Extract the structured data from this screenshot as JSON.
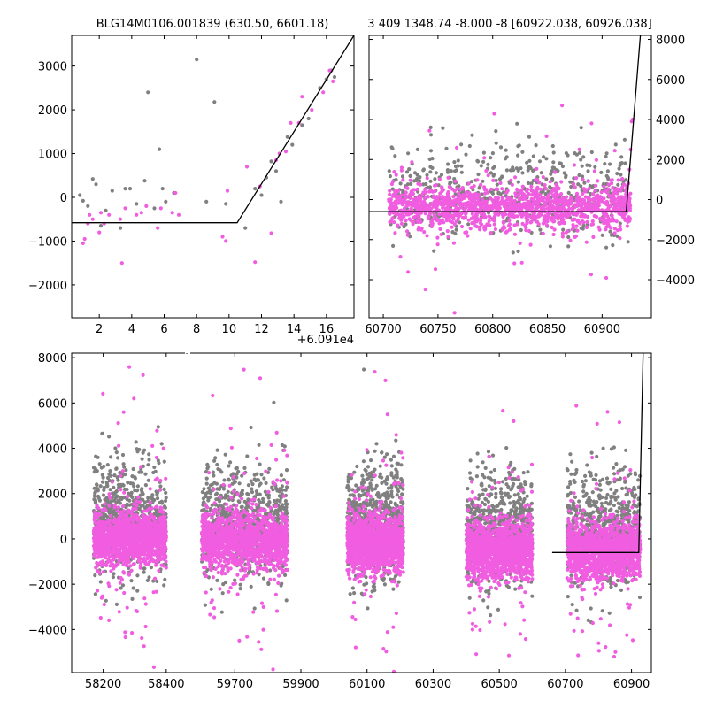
{
  "colors": {
    "gray_points": "#808080",
    "pink_points": "#f15de0",
    "model_line": "#000000",
    "axis": "#000000"
  },
  "chart_data": [
    {
      "name": "top-left-zoom",
      "type": "scatter",
      "title": "BLG14M0106.001839 (630.50, 6601.18)",
      "x_offset_label": "+6.091e4",
      "xlim": [
        0.3,
        17.7
      ],
      "ylim": [
        -2750,
        3700
      ],
      "xticks": [
        2,
        4,
        6,
        8,
        10,
        12,
        14,
        16
      ],
      "xtick_labels": [
        "2",
        "4",
        "6",
        "8",
        "10",
        "12",
        "14",
        "16"
      ],
      "yticks": [
        -2000,
        -1000,
        0,
        1000,
        2000,
        3000
      ],
      "ytick_labels": [
        "−2000",
        "−1000",
        "0",
        "1000",
        "2000",
        "3000"
      ],
      "ytick_side": "left",
      "model_line": [
        [
          0.3,
          -580
        ],
        [
          10.5,
          -580
        ],
        [
          17.7,
          3700
        ]
      ],
      "gray_points": [
        [
          0.8,
          50
        ],
        [
          1.0,
          -80
        ],
        [
          1.3,
          -200
        ],
        [
          1.6,
          420
        ],
        [
          1.8,
          300
        ],
        [
          2.1,
          -650
        ],
        [
          2.4,
          -300
        ],
        [
          2.8,
          150
        ],
        [
          3.3,
          -700
        ],
        [
          3.6,
          200
        ],
        [
          3.9,
          200
        ],
        [
          4.3,
          -150
        ],
        [
          4.8,
          380
        ],
        [
          5.0,
          2400
        ],
        [
          5.4,
          -250
        ],
        [
          5.7,
          1100
        ],
        [
          5.9,
          200
        ],
        [
          6.1,
          -100
        ],
        [
          6.6,
          100
        ],
        [
          8.0,
          3150
        ],
        [
          8.6,
          -100
        ],
        [
          9.1,
          2180
        ],
        [
          9.8,
          -150
        ],
        [
          11.0,
          -700
        ],
        [
          11.6,
          200
        ],
        [
          12.0,
          50
        ],
        [
          12.3,
          450
        ],
        [
          12.6,
          820
        ],
        [
          12.9,
          600
        ],
        [
          13.2,
          -100
        ],
        [
          13.6,
          1380
        ],
        [
          13.9,
          1200
        ],
        [
          14.5,
          1650
        ],
        [
          14.9,
          1800
        ],
        [
          15.6,
          2500
        ],
        [
          16.0,
          2700
        ],
        [
          16.3,
          2900
        ],
        [
          16.5,
          2750
        ]
      ],
      "pink_points": [
        [
          1.0,
          -1050
        ],
        [
          1.1,
          -950
        ],
        [
          1.3,
          -600
        ],
        [
          1.4,
          -400
        ],
        [
          1.6,
          -500
        ],
        [
          2.0,
          -800
        ],
        [
          2.1,
          -350
        ],
        [
          2.3,
          -600
        ],
        [
          2.6,
          -400
        ],
        [
          3.3,
          -500
        ],
        [
          3.4,
          -1500
        ],
        [
          3.6,
          -250
        ],
        [
          4.3,
          -400
        ],
        [
          4.6,
          -350
        ],
        [
          4.9,
          -200
        ],
        [
          5.6,
          -700
        ],
        [
          5.8,
          -250
        ],
        [
          6.5,
          -350
        ],
        [
          6.7,
          100
        ],
        [
          6.9,
          -400
        ],
        [
          9.6,
          -900
        ],
        [
          9.8,
          -1000
        ],
        [
          9.9,
          150
        ],
        [
          11.1,
          700
        ],
        [
          11.6,
          -1480
        ],
        [
          11.9,
          250
        ],
        [
          12.6,
          -820
        ],
        [
          12.9,
          850
        ],
        [
          13.1,
          1000
        ],
        [
          13.5,
          1050
        ],
        [
          13.8,
          1700
        ],
        [
          14.3,
          1700
        ],
        [
          14.5,
          2300
        ],
        [
          15.1,
          2000
        ],
        [
          15.8,
          2400
        ],
        [
          16.2,
          2900
        ],
        [
          16.4,
          2650
        ]
      ]
    },
    {
      "name": "top-right-zoom",
      "type": "scatter",
      "title": "3 409 1348.74 -8.000 -8 [60922.038, 60926.038]",
      "xlim": [
        60687,
        60945
      ],
      "ylim": [
        -5900,
        8200
      ],
      "xticks": [
        60700,
        60750,
        60800,
        60850,
        60900
      ],
      "xtick_labels": [
        "60700",
        "60750",
        "60800",
        "60850",
        "60900"
      ],
      "yticks": [
        -4000,
        -2000,
        0,
        2000,
        4000,
        6000,
        8000
      ],
      "ytick_labels": [
        "−4000",
        "−2000",
        "0",
        "2000",
        "4000",
        "6000",
        "8000"
      ],
      "ytick_side": "right",
      "model_line": [
        [
          60687,
          -600
        ],
        [
          60922,
          -600
        ],
        [
          60935,
          8200
        ]
      ],
      "cloud": {
        "x_range": [
          60705,
          60926
        ],
        "center": -400,
        "spread": 550,
        "n_pink": 1400,
        "n_gray": 550,
        "gray_spread": 1500
      },
      "rise_points": [
        [
          60922,
          200
        ],
        [
          60924,
          800
        ],
        [
          60925,
          1500
        ],
        [
          60926,
          2500
        ],
        [
          60927,
          3900
        ],
        [
          60928,
          4000
        ]
      ]
    },
    {
      "name": "bottom-full-lightcurve",
      "type": "scatter",
      "xlim": [
        58100,
        60960
      ],
      "ylim": [
        -5900,
        8200
      ],
      "xticks": [
        58200,
        58400,
        59700,
        59900,
        60100,
        60300,
        60500,
        60700,
        60900
      ],
      "xtick_labels": [
        "58200",
        "58400",
        "59700",
        "59900",
        "60100",
        "60300",
        "60500",
        "60700",
        "60900"
      ],
      "yticks": [
        -4000,
        -2000,
        0,
        2000,
        4000,
        6000,
        8000
      ],
      "ytick_labels": [
        "−4000",
        "−2000",
        "0",
        "2000",
        "4000",
        "6000",
        "8000"
      ],
      "ytick_side": "left",
      "axis_break": "between 58400 and 59700",
      "seasons": [
        {
          "x_range": [
            58170,
            58400
          ],
          "center": 0,
          "spread": 550
        },
        {
          "x_range": [
            59600,
            59860
          ],
          "center": -100,
          "spread": 600
        },
        {
          "x_range": [
            60040,
            60210
          ],
          "center": -200,
          "spread": 600
        },
        {
          "x_range": [
            60400,
            60600
          ],
          "center": -500,
          "spread": 600
        },
        {
          "x_range": [
            60705,
            60926
          ],
          "center": -550,
          "spread": 600
        }
      ],
      "model_line": [
        [
          60660,
          -600
        ],
        [
          60922,
          -600
        ],
        [
          60935,
          8200
        ]
      ]
    }
  ]
}
